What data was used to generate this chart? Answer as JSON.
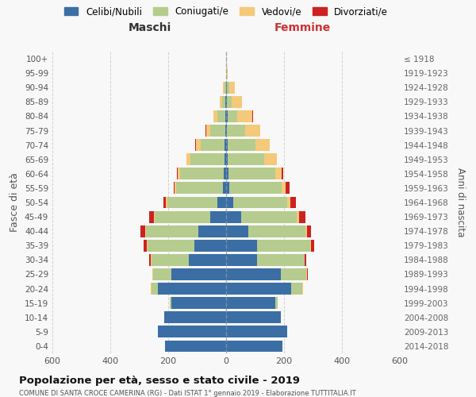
{
  "age_groups": [
    "100+",
    "95-99",
    "90-94",
    "85-89",
    "80-84",
    "75-79",
    "70-74",
    "65-69",
    "60-64",
    "55-59",
    "50-54",
    "45-49",
    "40-44",
    "35-39",
    "30-34",
    "25-29",
    "20-24",
    "15-19",
    "10-14",
    "5-9",
    "0-4"
  ],
  "birth_years": [
    "≤ 1918",
    "1919-1923",
    "1924-1928",
    "1929-1933",
    "1934-1938",
    "1939-1943",
    "1944-1948",
    "1949-1953",
    "1954-1958",
    "1959-1963",
    "1964-1968",
    "1969-1973",
    "1974-1978",
    "1979-1983",
    "1984-1988",
    "1989-1993",
    "1994-1998",
    "1999-2003",
    "2004-2008",
    "2009-2013",
    "2014-2018"
  ],
  "male_celibe": [
    0,
    0,
    0,
    2,
    3,
    4,
    5,
    5,
    8,
    10,
    30,
    55,
    95,
    110,
    130,
    190,
    235,
    190,
    215,
    235,
    210
  ],
  "male_coniugato": [
    0,
    0,
    5,
    12,
    28,
    52,
    82,
    118,
    152,
    162,
    172,
    192,
    182,
    162,
    128,
    62,
    22,
    5,
    0,
    0,
    0
  ],
  "male_vedovo": [
    0,
    0,
    5,
    8,
    13,
    13,
    18,
    13,
    8,
    5,
    5,
    3,
    3,
    2,
    2,
    2,
    2,
    0,
    0,
    0,
    0
  ],
  "male_divorziato": [
    0,
    0,
    0,
    0,
    0,
    2,
    2,
    2,
    3,
    5,
    10,
    15,
    15,
    10,
    5,
    2,
    2,
    0,
    0,
    0,
    0
  ],
  "female_celibe": [
    0,
    0,
    2,
    4,
    5,
    3,
    5,
    5,
    8,
    10,
    25,
    52,
    78,
    108,
    108,
    190,
    225,
    170,
    190,
    210,
    195
  ],
  "female_coniugato": [
    0,
    0,
    8,
    14,
    33,
    62,
    97,
    127,
    162,
    182,
    187,
    192,
    197,
    182,
    162,
    88,
    38,
    8,
    0,
    0,
    0
  ],
  "female_vedovo": [
    2,
    5,
    20,
    38,
    52,
    52,
    48,
    42,
    23,
    14,
    10,
    8,
    5,
    3,
    2,
    2,
    2,
    0,
    0,
    0,
    0
  ],
  "female_divorziato": [
    0,
    0,
    0,
    0,
    2,
    2,
    2,
    2,
    5,
    14,
    19,
    21,
    14,
    10,
    5,
    2,
    2,
    0,
    0,
    0,
    0
  ],
  "colors": {
    "celibe": "#3b6ea5",
    "coniugato": "#b5cc8e",
    "vedovo": "#f5c97a",
    "divorziato": "#cc2222"
  },
  "xlim": 600,
  "title": "Popolazione per età, sesso e stato civile - 2019",
  "subtitle": "COMUNE DI SANTA CROCE CAMERINA (RG) - Dati ISTAT 1° gennaio 2019 - Elaborazione TUTTITALIA.IT",
  "xlabel_left": "Maschi",
  "xlabel_right": "Femmine",
  "ylabel_left": "Fasce di età",
  "ylabel_right": "Anni di nascita",
  "background_color": "#f8f8f8",
  "grid_color": "#cccccc"
}
